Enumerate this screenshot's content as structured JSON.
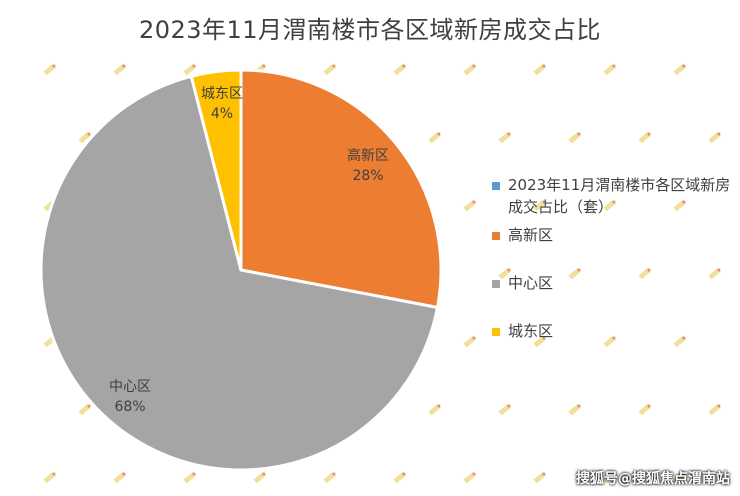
{
  "chart_data": {
    "type": "pie",
    "title": "2023年11月渭南楼市各区域新房成交占比",
    "series_title": "2023年11月渭南楼市各区域新房成交占比（套）",
    "slices": [
      {
        "label": "高新区",
        "percent_label": "28%",
        "value": 28,
        "color": "#ED7D31"
      },
      {
        "label": "中心区",
        "percent_label": "68%",
        "value": 68,
        "color": "#A5A5A5"
      },
      {
        "label": "城东区",
        "percent_label": "4%",
        "value": 4,
        "color": "#FFC000"
      }
    ],
    "legend": [
      {
        "label": "2023年11月渭南楼市各区域新房成交占比（套）",
        "color": "#5B9BD5"
      },
      {
        "label": "高新区",
        "color": "#ED7D31"
      },
      {
        "label": "中心区",
        "color": "#A5A5A5"
      },
      {
        "label": "城东区",
        "color": "#FFC000"
      }
    ],
    "legend_position": "right"
  },
  "watermark": "搜狐号@搜狐焦点渭南站"
}
